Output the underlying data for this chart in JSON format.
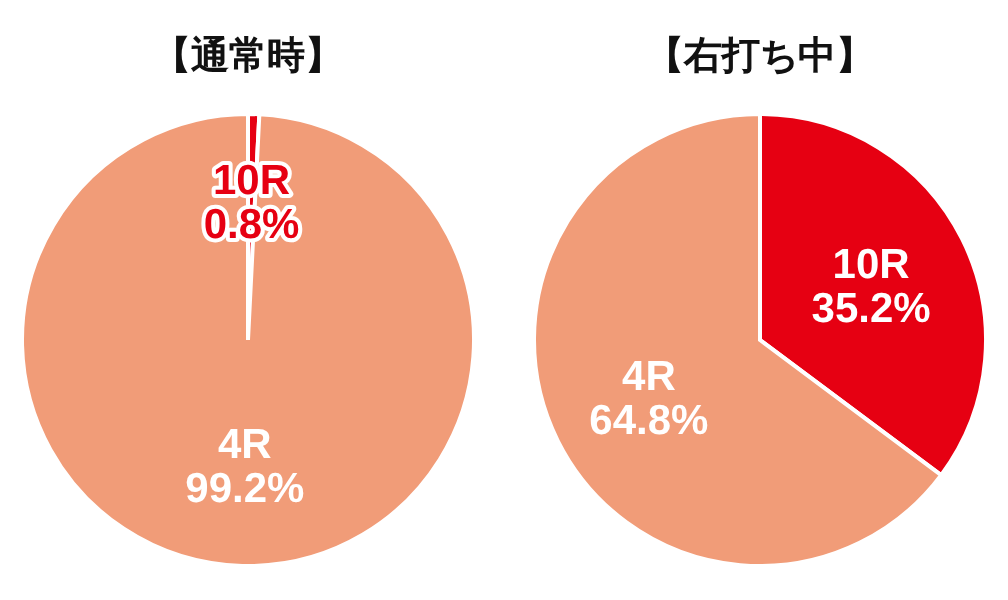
{
  "chart_data": [
    {
      "type": "pie",
      "title": "【通常時】",
      "categories": [
        "10R",
        "4R"
      ],
      "values": [
        0.8,
        99.2
      ],
      "colors": [
        "#e60012",
        "#f19c78"
      ],
      "value_labels": [
        "0.8%",
        "99.2%"
      ]
    },
    {
      "type": "pie",
      "title": "【右打ち中】",
      "categories": [
        "10R",
        "4R"
      ],
      "values": [
        35.2,
        64.8
      ],
      "colors": [
        "#e60012",
        "#f19c78"
      ],
      "value_labels": [
        "35.2%",
        "64.8%"
      ]
    }
  ]
}
